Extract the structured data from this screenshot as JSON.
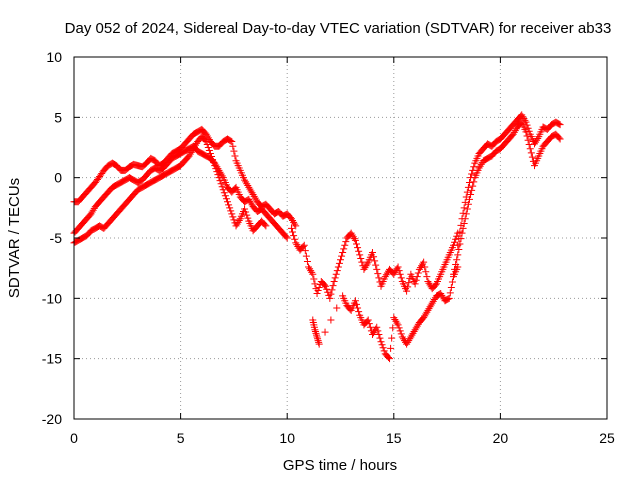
{
  "chart_data": {
    "type": "scatter",
    "title": "Day 052 of 2024, Sidereal Day-to-day VTEC variation (SDTVAR) for receiver ab33",
    "xlabel": "GPS time / hours",
    "ylabel": "SDTVAR / TECUs",
    "xlim": [
      0,
      25
    ],
    "ylim": [
      -20,
      10
    ],
    "xticks": [
      "0",
      "5",
      "10",
      "15",
      "20",
      "25"
    ],
    "yticks": [
      "-20",
      "-15",
      "-10",
      "-5",
      "0",
      "5",
      "10"
    ],
    "grid": true,
    "legend": "none",
    "marker": "plus",
    "colors": {
      "series": "#ff0000",
      "grid": "#9a9a9a",
      "axes": "#000000"
    },
    "series": [
      {
        "x": [
          0.0,
          0.2,
          0.4,
          0.6,
          0.8,
          1.0,
          1.2,
          1.4,
          1.6,
          1.8,
          2.0,
          2.2,
          2.4,
          2.6,
          2.8,
          3.0,
          3.2,
          3.4,
          3.6,
          3.8,
          4.0,
          4.2,
          4.4,
          4.6,
          4.8,
          5.0,
          5.2,
          5.4,
          5.6,
          5.8,
          6.0,
          6.2,
          6.4,
          6.6,
          6.8,
          7.0,
          7.2,
          7.4,
          7.6,
          7.8,
          8.0,
          8.2,
          8.4,
          8.6,
          8.8,
          9.0,
          9.2,
          9.4,
          9.6,
          9.8,
          10.0,
          10.2,
          10.4
        ],
        "y": [
          -2.0,
          -2.0,
          -1.6,
          -1.2,
          -0.8,
          -0.4,
          0.1,
          0.6,
          1.0,
          1.2,
          1.0,
          0.6,
          0.6,
          0.9,
          1.1,
          1.0,
          0.9,
          1.2,
          1.6,
          1.4,
          1.0,
          1.2,
          1.6,
          2.0,
          2.2,
          2.4,
          2.8,
          3.2,
          3.6,
          3.8,
          4.0,
          3.6,
          3.0,
          2.6,
          2.6,
          3.0,
          3.2,
          3.0,
          1.4,
          0.6,
          -0.2,
          -0.8,
          -1.4,
          -2.0,
          -2.4,
          -2.2,
          -2.6,
          -3.0,
          -2.8,
          -3.2,
          -3.0,
          -3.4,
          -4.0
        ]
      },
      {
        "x": [
          0.0,
          0.2,
          0.4,
          0.6,
          0.8,
          1.0,
          1.2,
          1.4,
          1.6,
          1.8,
          2.0,
          2.2,
          2.4,
          2.6,
          2.8,
          3.0,
          3.2,
          3.4,
          3.6,
          3.8,
          4.0,
          4.2,
          4.4,
          4.6,
          4.8,
          5.0,
          5.2,
          5.4,
          5.6,
          5.8,
          6.0,
          6.2,
          6.4,
          6.6,
          6.8,
          7.0,
          7.2,
          7.4,
          7.6,
          7.8,
          8.0,
          8.2,
          8.4,
          8.6,
          8.8,
          9.0,
          9.2,
          9.4,
          9.6,
          9.8,
          10.0
        ],
        "y": [
          -4.6,
          -4.2,
          -3.8,
          -3.4,
          -3.0,
          -2.4,
          -2.0,
          -1.6,
          -1.2,
          -0.8,
          -0.6,
          -0.4,
          -0.2,
          0.0,
          -0.2,
          -0.4,
          -0.2,
          0.2,
          0.6,
          0.8,
          0.6,
          0.8,
          1.2,
          1.6,
          1.8,
          2.0,
          2.2,
          2.4,
          2.6,
          2.2,
          2.0,
          1.8,
          1.6,
          1.2,
          0.6,
          0.0,
          -0.8,
          -1.2,
          -0.8,
          -1.6,
          -2.0,
          -1.8,
          -2.4,
          -2.8,
          -2.6,
          -3.0,
          -3.4,
          -3.8,
          -4.2,
          -4.6,
          -5.0
        ]
      },
      {
        "x": [
          0.0,
          0.2,
          0.4,
          0.6,
          0.8,
          1.0,
          1.2,
          1.4,
          1.6,
          1.8,
          2.0,
          2.2,
          2.4,
          2.6,
          2.8,
          3.0,
          3.2,
          3.4,
          3.6,
          3.8,
          4.0,
          4.2,
          4.4,
          4.6,
          4.8,
          5.0,
          5.2,
          5.4,
          5.6,
          5.8,
          6.0,
          6.2,
          6.4,
          6.6,
          6.8,
          7.0,
          7.2,
          7.4,
          7.6,
          7.8,
          8.0,
          8.2,
          8.4,
          8.6,
          8.8,
          9.0
        ],
        "y": [
          -5.4,
          -5.2,
          -5.0,
          -4.8,
          -4.4,
          -4.2,
          -4.0,
          -4.2,
          -3.8,
          -3.4,
          -3.0,
          -2.6,
          -2.2,
          -1.8,
          -1.4,
          -1.0,
          -0.8,
          -0.6,
          -0.4,
          -0.2,
          0.0,
          0.2,
          0.4,
          0.6,
          0.8,
          1.0,
          1.4,
          1.8,
          2.4,
          3.0,
          3.4,
          3.0,
          2.0,
          1.0,
          0.0,
          -1.0,
          -2.0,
          -3.0,
          -4.0,
          -3.4,
          -2.6,
          -3.6,
          -4.4,
          -4.0,
          -3.6,
          -4.0
        ]
      },
      {
        "x": [
          10.2,
          10.4,
          10.6,
          10.8,
          11.0,
          11.2,
          11.4,
          11.6,
          11.8,
          12.0,
          12.2,
          12.4,
          12.6,
          12.8,
          13.0,
          13.2,
          13.4,
          13.6,
          13.8,
          14.0,
          14.2,
          14.4,
          14.6,
          14.8,
          15.0,
          15.2,
          15.4,
          15.6,
          15.8,
          16.0,
          16.2,
          16.4,
          16.6,
          16.8,
          17.0,
          17.2,
          17.4,
          17.6,
          17.8,
          18.0
        ],
        "y": [
          -4.2,
          -5.4,
          -6.0,
          -5.6,
          -7.4,
          -8.0,
          -9.6,
          -8.6,
          -9.0,
          -10.0,
          -8.6,
          -7.4,
          -6.2,
          -5.0,
          -4.6,
          -5.2,
          -6.4,
          -7.6,
          -7.0,
          -6.2,
          -7.6,
          -9.0,
          -8.2,
          -7.6,
          -8.0,
          -7.4,
          -8.6,
          -9.4,
          -8.0,
          -8.8,
          -7.6,
          -7.0,
          -8.6,
          -9.2,
          -8.8,
          -8.0,
          -7.2,
          -6.4,
          -5.6,
          -4.6
        ]
      },
      {
        "x": [
          11.2,
          11.3,
          11.4,
          11.5,
          12.6,
          12.8,
          13.0,
          13.2,
          13.4,
          13.6,
          13.8,
          14.0,
          14.2,
          14.4,
          14.6,
          14.8,
          15.0,
          15.2,
          15.4,
          15.6,
          15.8,
          16.0,
          16.2,
          16.4,
          16.6,
          16.8,
          17.0,
          17.2,
          17.4,
          17.6,
          17.8,
          18.0
        ],
        "y": [
          -11.8,
          -12.6,
          -13.2,
          -13.8,
          -9.8,
          -10.6,
          -11.0,
          -10.2,
          -11.4,
          -12.2,
          -11.8,
          -13.0,
          -12.4,
          -13.6,
          -14.6,
          -15.0,
          -11.6,
          -12.2,
          -13.2,
          -13.8,
          -13.2,
          -12.6,
          -12.0,
          -11.6,
          -11.0,
          -10.4,
          -9.8,
          -9.6,
          -10.2,
          -10.0,
          -8.2,
          -7.4
        ]
      },
      {
        "x": [
          18.0,
          18.2,
          18.4,
          18.6,
          18.8,
          19.0,
          19.2,
          19.4,
          19.6,
          19.8,
          20.0,
          20.2,
          20.4,
          20.6,
          20.8,
          21.0,
          21.2,
          21.4,
          21.6,
          21.8,
          22.0,
          22.2,
          22.4,
          22.6,
          22.8
        ],
        "y": [
          -5.6,
          -3.4,
          -1.6,
          0.0,
          1.2,
          2.0,
          2.4,
          2.8,
          2.6,
          3.0,
          3.2,
          3.6,
          4.0,
          4.4,
          4.8,
          5.2,
          4.6,
          3.6,
          2.8,
          3.4,
          4.2,
          4.0,
          4.4,
          4.6,
          4.4
        ]
      },
      {
        "x": [
          17.8,
          18.0,
          18.2,
          18.4,
          18.6,
          18.8,
          19.0,
          19.2,
          19.4,
          19.6,
          19.8,
          20.0,
          20.2,
          20.4,
          20.6,
          20.8,
          21.0,
          21.2,
          21.4,
          21.6,
          21.8,
          22.0,
          22.2,
          22.4,
          22.6,
          22.8
        ],
        "y": [
          -8.0,
          -6.4,
          -4.6,
          -3.0,
          -1.4,
          0.0,
          0.8,
          1.4,
          1.6,
          1.8,
          2.2,
          2.4,
          2.8,
          3.2,
          3.6,
          4.2,
          4.6,
          3.8,
          2.4,
          1.0,
          1.8,
          2.6,
          3.0,
          3.4,
          3.6,
          3.2
        ]
      }
    ]
  }
}
